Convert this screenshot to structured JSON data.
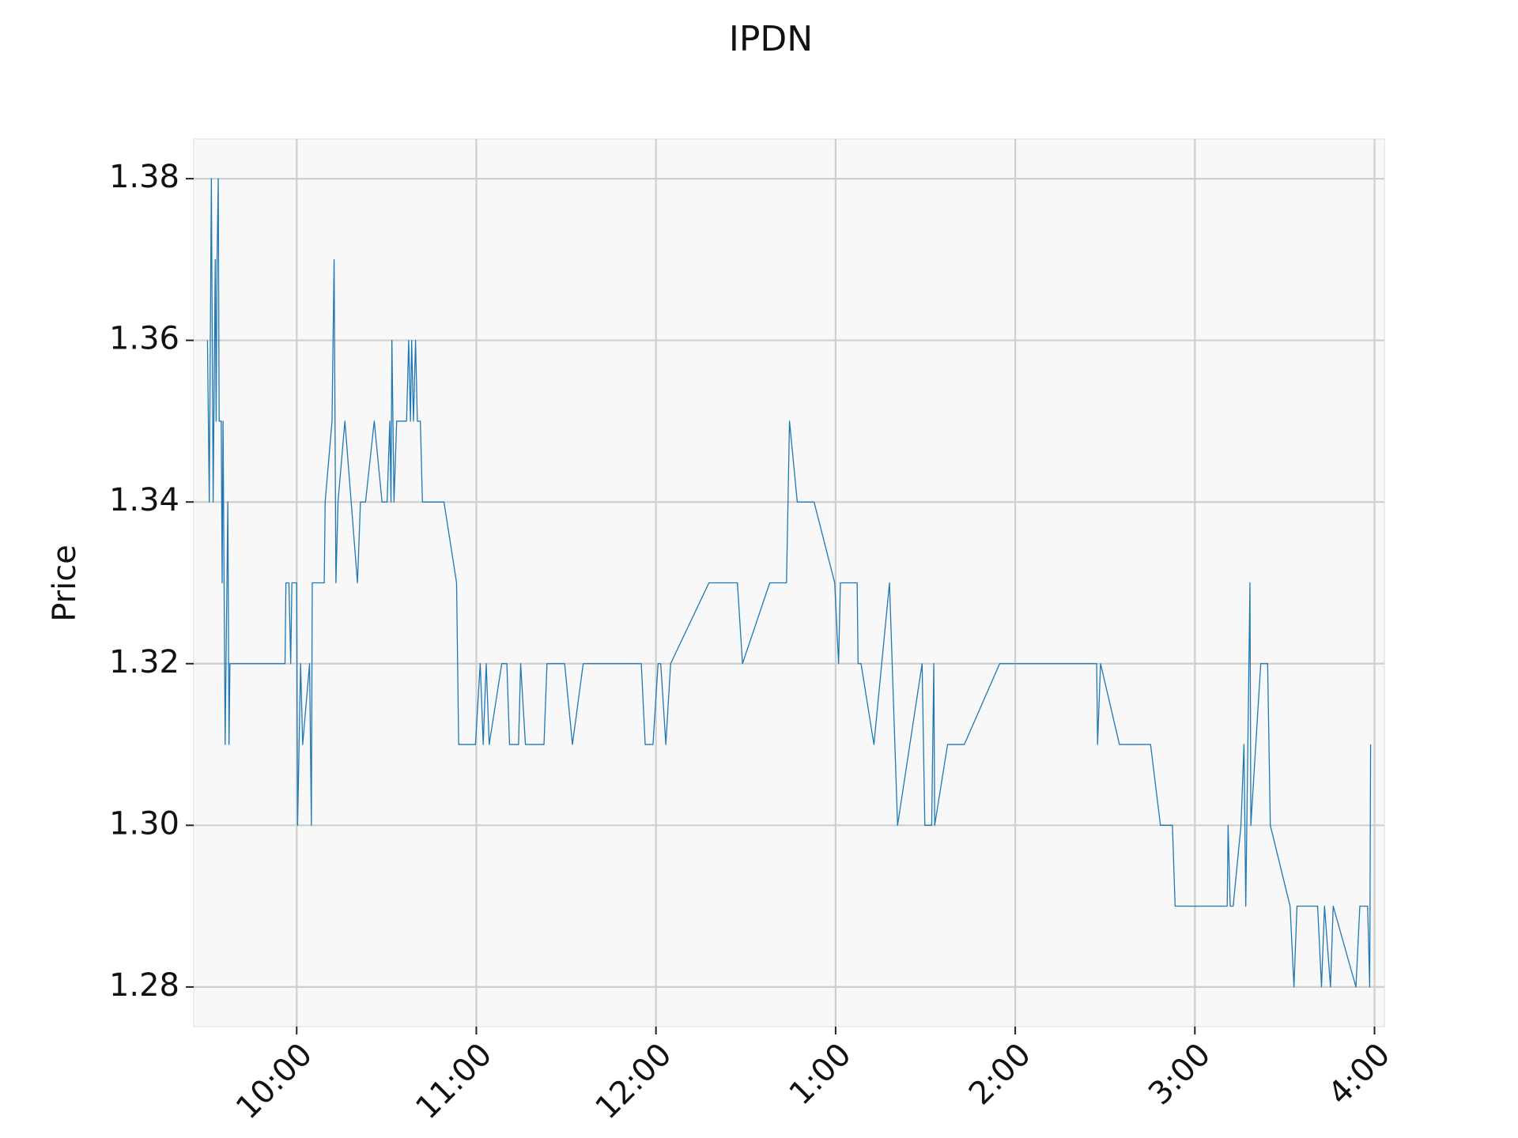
{
  "chart_data": {
    "type": "line",
    "title": "IPDN",
    "y_label": "Price",
    "color": "#1f77b4",
    "grid": true,
    "x": [
      570.2,
      570.8,
      571.5,
      572.1,
      572.8,
      573.1,
      573.4,
      573.8,
      574.1,
      574.8,
      575.1,
      575.4,
      576.1,
      577.0,
      577.4,
      577.7,
      596.1,
      596.4,
      597.4,
      598.0,
      598.4,
      600,
      600.3,
      601.3,
      602.0,
      604.3,
      604.9,
      605.2,
      609.2,
      609.5,
      611.8,
      612.5,
      613.1,
      613.8,
      616.1,
      620.3,
      621.3,
      623.0,
      625.9,
      628.5,
      630.2,
      631.1,
      631.5,
      631.8,
      632.5,
      633.4,
      636.7,
      637.4,
      638.0,
      638.4,
      639.0,
      639.7,
      640.3,
      641.3,
      642.0,
      649.2,
      653.4,
      654.1,
      659.7,
      661.3,
      662.3,
      663.3,
      664.3,
      668.5,
      670.2,
      671.1,
      674.1,
      674.8,
      676.4,
      682.6,
      683.6,
      689.5,
      692.1,
      695.7,
      715.1,
      716.4,
      719.0,
      720.7,
      721.6,
      723.3,
      724.9,
      737.7,
      747.2,
      748.9,
      758.0,
      763.6,
      764.6,
      767.2,
      772.8,
      779.7,
      781.0,
      781.6,
      787.2,
      787.5,
      788.5,
      792.8,
      798.0,
      800.7,
      808.9,
      809.8,
      812.1,
      812.8,
      813.1,
      817.4,
      823.0,
      834.8,
      867.2,
      867.5,
      868.5,
      874.8,
      885.2,
      888.5,
      892.5,
      893.4,
      910.8,
      911.1,
      911.8,
      912.8,
      915.4,
      916.4,
      917.0,
      918.4,
      918.7,
      922.0,
      924.3,
      925.2,
      931.8,
      933.1,
      934.1,
      941.0,
      942.3,
      943.3,
      945.3,
      946.2,
      953.8,
      955.1,
      957.7,
      958.4,
      958.7
    ],
    "values": [
      1.36,
      1.34,
      1.38,
      1.34,
      1.37,
      1.35,
      1.37,
      1.38,
      1.35,
      1.35,
      1.33,
      1.35,
      1.31,
      1.34,
      1.31,
      1.32,
      1.32,
      1.33,
      1.33,
      1.32,
      1.33,
      1.33,
      1.3,
      1.32,
      1.31,
      1.32,
      1.3,
      1.33,
      1.33,
      1.34,
      1.35,
      1.37,
      1.33,
      1.34,
      1.35,
      1.33,
      1.34,
      1.34,
      1.35,
      1.34,
      1.34,
      1.35,
      1.34,
      1.36,
      1.34,
      1.35,
      1.35,
      1.36,
      1.35,
      1.36,
      1.35,
      1.36,
      1.35,
      1.35,
      1.34,
      1.34,
      1.33,
      1.31,
      1.31,
      1.32,
      1.31,
      1.32,
      1.31,
      1.32,
      1.32,
      1.31,
      1.31,
      1.32,
      1.31,
      1.31,
      1.32,
      1.32,
      1.31,
      1.32,
      1.32,
      1.31,
      1.31,
      1.32,
      1.32,
      1.31,
      1.32,
      1.33,
      1.33,
      1.32,
      1.33,
      1.33,
      1.35,
      1.34,
      1.34,
      1.33,
      1.32,
      1.33,
      1.33,
      1.32,
      1.32,
      1.31,
      1.33,
      1.3,
      1.32,
      1.3,
      1.3,
      1.32,
      1.3,
      1.31,
      1.31,
      1.32,
      1.32,
      1.31,
      1.32,
      1.31,
      1.31,
      1.3,
      1.3,
      1.29,
      1.29,
      1.3,
      1.29,
      1.29,
      1.3,
      1.31,
      1.29,
      1.33,
      1.3,
      1.32,
      1.32,
      1.3,
      1.29,
      1.28,
      1.29,
      1.29,
      1.28,
      1.29,
      1.28,
      1.29,
      1.28,
      1.29,
      1.29,
      1.28,
      1.31
    ],
    "xlim": [
      565.6,
      963.3
    ],
    "xticks": [
      {
        "value": 600,
        "label": "10:00"
      },
      {
        "value": 660,
        "label": "11:00"
      },
      {
        "value": 720,
        "label": "12:00"
      },
      {
        "value": 780,
        "label": "1:00"
      },
      {
        "value": 840,
        "label": "2:00"
      },
      {
        "value": 900,
        "label": "3:00"
      },
      {
        "value": 960,
        "label": "4:00"
      }
    ],
    "ylim": [
      1.2751,
      1.3849
    ],
    "yticks": [
      1.28,
      {
        "value": 1.3,
        "label": "1.30"
      },
      1.32,
      1.34,
      1.36,
      1.38
    ]
  }
}
